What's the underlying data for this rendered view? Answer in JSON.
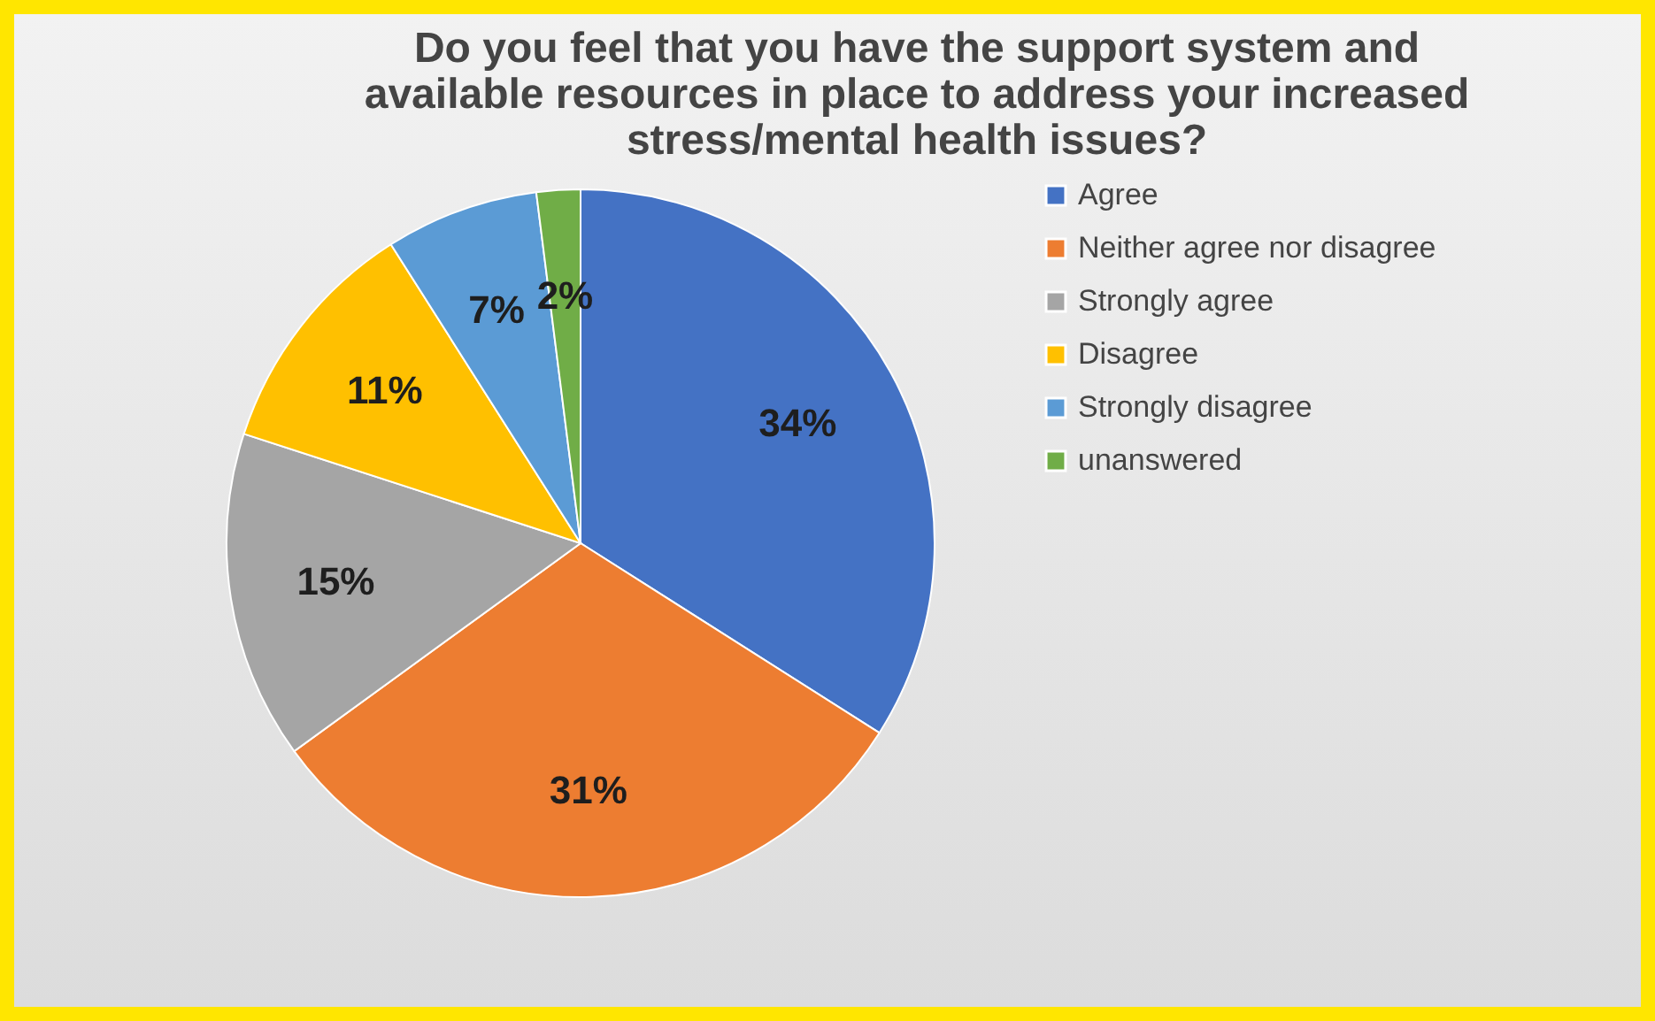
{
  "chart_data": {
    "type": "pie",
    "title": [
      "Do you feel that you have the support system and",
      "available resources in place to address your increased",
      "stress/mental health issues?"
    ],
    "categories": [
      "Agree",
      "Neither agree nor disagree",
      "Strongly agree",
      "Disagree",
      "Strongly disagree",
      "unanswered"
    ],
    "values": [
      34,
      31,
      15,
      11,
      7,
      2
    ],
    "value_labels": [
      "34%",
      "31%",
      "15%",
      "11%",
      "7%",
      "2%"
    ],
    "colors": [
      "#4472c4",
      "#ed7d31",
      "#a5a5a5",
      "#ffc000",
      "#5b9bd5",
      "#70ad47"
    ],
    "legend": "right"
  }
}
